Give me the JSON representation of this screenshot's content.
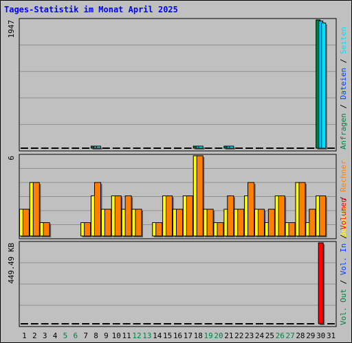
{
  "colors": {
    "background": "#c0c0c0",
    "plot_background": "#c0c0c0",
    "gridline": "#8f8f8f",
    "title": "#0000ff",
    "weekday_label": "#000000",
    "weekend_label": "#008040",
    "hits": "#008040",
    "files": "#00c0ff",
    "pages": "#00e0ff",
    "visits": "#ffff00",
    "sites": "#ff8000",
    "kbytes": "#ff0000",
    "outline": "#000000"
  },
  "chart_data": {
    "type": "bar",
    "title": "Tages-Statistik im Monat April 2025",
    "days": [
      "1",
      "2",
      "3",
      "4",
      "5",
      "6",
      "7",
      "8",
      "9",
      "10",
      "11",
      "12",
      "13",
      "14",
      "15",
      "16",
      "17",
      "18",
      "19",
      "20",
      "21",
      "22",
      "23",
      "24",
      "25",
      "26",
      "27",
      "28",
      "29",
      "30",
      "31"
    ],
    "weekend_days": [
      "5",
      "6",
      "12",
      "13",
      "19",
      "20",
      "26",
      "27"
    ],
    "panels": [
      {
        "id": "requests",
        "max_label": "1947",
        "ymax": 1947,
        "series": [
          {
            "name": "Anfragen",
            "color": "#008040",
            "values": [
              0,
              0,
              0,
              0,
              0,
              0,
              0,
              12,
              0,
              0,
              0,
              0,
              0,
              0,
              0,
              0,
              0,
              12,
              0,
              0,
              12,
              0,
              0,
              0,
              0,
              0,
              0,
              0,
              0,
              1947,
              0
            ]
          },
          {
            "name": "Dateien",
            "color": "#00c0ff",
            "values": [
              0,
              0,
              0,
              0,
              0,
              0,
              0,
              6,
              0,
              0,
              0,
              0,
              0,
              0,
              0,
              0,
              0,
              6,
              0,
              0,
              6,
              0,
              0,
              0,
              0,
              0,
              0,
              0,
              0,
              1930,
              0
            ]
          },
          {
            "name": "Seiten",
            "color": "#00e0ff",
            "values": [
              0,
              0,
              0,
              0,
              0,
              0,
              0,
              3,
              0,
              0,
              0,
              0,
              0,
              0,
              0,
              0,
              0,
              3,
              0,
              0,
              3,
              0,
              0,
              0,
              0,
              0,
              0,
              0,
              0,
              1900,
              0
            ]
          }
        ],
        "legend": [
          {
            "label": "Anfragen",
            "color": "#008040"
          },
          {
            "label": "Dateien",
            "color": "#0040ff"
          },
          {
            "label": "Seiten",
            "color": "#00e0ff"
          }
        ]
      },
      {
        "id": "visits",
        "max_label": "6",
        "ymax": 6,
        "series": [
          {
            "name": "Besuche",
            "color": "#ffff00",
            "values": [
              2,
              4,
              1,
              0,
              0,
              0,
              1,
              3,
              2,
              3,
              2,
              2,
              0,
              1,
              3,
              2,
              3,
              6,
              2,
              1,
              2,
              2,
              3,
              2,
              1,
              3,
              1,
              4,
              1,
              3,
              0
            ]
          },
          {
            "name": "Rechner",
            "color": "#ff8000",
            "values": [
              2,
              4,
              1,
              0,
              0,
              0,
              1,
              4,
              2,
              3,
              3,
              2,
              0,
              1,
              3,
              2,
              3,
              6,
              2,
              1,
              3,
              2,
              4,
              2,
              2,
              3,
              1,
              4,
              2,
              3,
              0
            ]
          }
        ],
        "legend": [
          {
            "label": "Besuche",
            "color": "#ffff00"
          },
          {
            "label": "Rechner",
            "color": "#ff8000"
          }
        ]
      },
      {
        "id": "volume",
        "max_label": "449.49 KB",
        "ymax": 449.49,
        "series": [
          {
            "name": "Volumen",
            "color": "#ff0000",
            "values": [
              0,
              0,
              0,
              0,
              0,
              0,
              0,
              0,
              0,
              0,
              0,
              0,
              0,
              0,
              0,
              0,
              0,
              0,
              0,
              0,
              0,
              0,
              0,
              0,
              0,
              0,
              0,
              0,
              0,
              449.49,
              0
            ]
          }
        ],
        "legend": [
          {
            "label": "Vol. Out",
            "color": "#008040"
          },
          {
            "label": "Vol. In",
            "color": "#0040ff"
          },
          {
            "label": "Volumen",
            "color": "#ff0000"
          }
        ]
      }
    ]
  }
}
